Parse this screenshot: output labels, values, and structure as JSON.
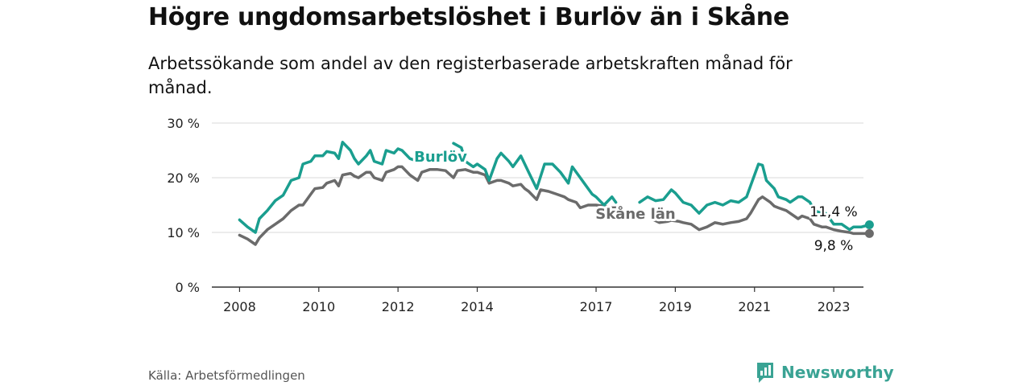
{
  "title": "Högre ungdomsarbetslöshet i Burlöv än i Skåne",
  "subtitle": "Arbetssökande som andel av den registerbaserade arbetskraften månad för månad.",
  "source": "Källa: Arbetsförmedlingen",
  "brand": "Newsworthy",
  "colors": {
    "burlov": "#1a9e8f",
    "skane": "#6b6b6b",
    "grid": "#d9d9d9",
    "axis": "#333333",
    "brand": "#3aa394"
  },
  "chart_data": {
    "type": "line",
    "title": "Högre ungdomsarbetslöshet i Burlöv än i Skåne",
    "xlabel": "",
    "ylabel": "",
    "ylim": [
      0,
      30
    ],
    "y_ticks": [
      0,
      10,
      20,
      30
    ],
    "y_tick_labels": [
      "0 %",
      "10 %",
      "20 %",
      "30 %"
    ],
    "x_range": [
      2007.3,
      2023.75
    ],
    "x_ticks": [
      2008,
      2010,
      2012,
      2014,
      2017,
      2019,
      2021,
      2023
    ],
    "x_tick_labels": [
      "2008",
      "2010",
      "2012",
      "2014",
      "2017",
      "2019",
      "2021",
      "2023"
    ],
    "series": [
      {
        "name": "Burlöv",
        "key": "burlov",
        "label_text": "Burlöv",
        "end_label": "11,4 %",
        "points": [
          [
            2008.0,
            12.3
          ],
          [
            2008.2,
            11.0
          ],
          [
            2008.4,
            10.0
          ],
          [
            2008.5,
            12.5
          ],
          [
            2008.7,
            14.0
          ],
          [
            2008.9,
            15.8
          ],
          [
            2009.1,
            16.8
          ],
          [
            2009.3,
            19.5
          ],
          [
            2009.5,
            20.0
          ],
          [
            2009.6,
            22.5
          ],
          [
            2009.8,
            23.0
          ],
          [
            2009.9,
            24.0
          ],
          [
            2010.1,
            24.0
          ],
          [
            2010.2,
            24.8
          ],
          [
            2010.4,
            24.5
          ],
          [
            2010.5,
            23.5
          ],
          [
            2010.6,
            26.5
          ],
          [
            2010.8,
            25.0
          ],
          [
            2010.9,
            23.5
          ],
          [
            2011.0,
            22.5
          ],
          [
            2011.2,
            24.0
          ],
          [
            2011.3,
            25.0
          ],
          [
            2011.4,
            23.0
          ],
          [
            2011.6,
            22.5
          ],
          [
            2011.7,
            25.0
          ],
          [
            2011.9,
            24.5
          ],
          [
            2012.0,
            25.3
          ],
          [
            2012.1,
            25.0
          ],
          [
            2012.3,
            23.5
          ],
          [
            2012.5,
            23.0
          ]
        ],
        "points_b": [
          [
            2013.4,
            26.3
          ],
          [
            2013.6,
            25.5
          ],
          [
            2013.7,
            23.0
          ],
          [
            2013.9,
            22.0
          ],
          [
            2014.0,
            22.5
          ],
          [
            2014.2,
            21.5
          ],
          [
            2014.3,
            19.5
          ],
          [
            2014.5,
            23.5
          ],
          [
            2014.6,
            24.5
          ],
          [
            2014.8,
            23.0
          ],
          [
            2014.9,
            22.0
          ],
          [
            2015.1,
            24.0
          ],
          [
            2015.2,
            22.5
          ],
          [
            2015.3,
            21.0
          ],
          [
            2015.5,
            18.0
          ],
          [
            2015.7,
            22.5
          ],
          [
            2015.9,
            22.5
          ],
          [
            2016.1,
            21.0
          ],
          [
            2016.3,
            19.0
          ],
          [
            2016.4,
            22.0
          ],
          [
            2016.6,
            20.0
          ],
          [
            2016.7,
            19.0
          ],
          [
            2016.9,
            17.0
          ],
          [
            2017.0,
            16.5
          ],
          [
            2017.2,
            15.0
          ],
          [
            2017.4,
            16.5
          ],
          [
            2017.5,
            15.5
          ]
        ],
        "points_c": [
          [
            2018.1,
            15.5
          ],
          [
            2018.3,
            16.5
          ],
          [
            2018.5,
            15.8
          ],
          [
            2018.7,
            16.0
          ],
          [
            2018.9,
            17.8
          ],
          [
            2019.0,
            17.2
          ],
          [
            2019.2,
            15.5
          ],
          [
            2019.4,
            15.0
          ],
          [
            2019.6,
            13.5
          ],
          [
            2019.8,
            15.0
          ],
          [
            2020.0,
            15.5
          ],
          [
            2020.2,
            15.0
          ],
          [
            2020.4,
            15.8
          ],
          [
            2020.6,
            15.5
          ],
          [
            2020.8,
            16.5
          ],
          [
            2020.9,
            18.5
          ],
          [
            2021.1,
            22.5
          ],
          [
            2021.2,
            22.3
          ],
          [
            2021.3,
            19.5
          ],
          [
            2021.5,
            18.0
          ],
          [
            2021.6,
            16.5
          ],
          [
            2021.8,
            16.0
          ],
          [
            2021.9,
            15.5
          ],
          [
            2022.1,
            16.5
          ],
          [
            2022.2,
            16.5
          ],
          [
            2022.4,
            15.5
          ],
          [
            2022.5,
            14.0
          ],
          [
            2022.7,
            13.5
          ],
          [
            2022.8,
            13.5
          ],
          [
            2023.0,
            11.5
          ],
          [
            2023.2,
            11.5
          ],
          [
            2023.4,
            10.5
          ],
          [
            2023.5,
            11.0
          ],
          [
            2023.7,
            11.0
          ],
          [
            2023.9,
            11.4
          ]
        ]
      },
      {
        "name": "Skåne län",
        "key": "skane",
        "label_text": "Skåne län",
        "end_label": "9,8 %",
        "points": [
          [
            2008.0,
            9.5
          ],
          [
            2008.2,
            8.8
          ],
          [
            2008.4,
            7.8
          ],
          [
            2008.5,
            9.0
          ],
          [
            2008.7,
            10.5
          ],
          [
            2008.9,
            11.5
          ],
          [
            2009.1,
            12.5
          ],
          [
            2009.3,
            14.0
          ],
          [
            2009.5,
            15.0
          ],
          [
            2009.6,
            15.0
          ],
          [
            2009.8,
            17.0
          ],
          [
            2009.9,
            18.0
          ],
          [
            2010.1,
            18.2
          ],
          [
            2010.2,
            19.0
          ],
          [
            2010.4,
            19.5
          ],
          [
            2010.5,
            18.5
          ],
          [
            2010.6,
            20.5
          ],
          [
            2010.8,
            20.8
          ],
          [
            2010.9,
            20.3
          ],
          [
            2011.0,
            20.0
          ],
          [
            2011.2,
            21.0
          ],
          [
            2011.3,
            21.0
          ],
          [
            2011.4,
            20.0
          ],
          [
            2011.6,
            19.5
          ],
          [
            2011.7,
            21.0
          ],
          [
            2011.9,
            21.5
          ],
          [
            2012.0,
            22.0
          ],
          [
            2012.1,
            22.0
          ],
          [
            2012.3,
            20.5
          ],
          [
            2012.5,
            19.5
          ],
          [
            2012.6,
            21.0
          ],
          [
            2012.8,
            21.5
          ],
          [
            2013.0,
            21.5
          ],
          [
            2013.2,
            21.3
          ],
          [
            2013.4,
            20.0
          ],
          [
            2013.5,
            21.3
          ],
          [
            2013.7,
            21.5
          ],
          [
            2013.9,
            21.0
          ],
          [
            2014.0,
            21.0
          ],
          [
            2014.2,
            20.5
          ],
          [
            2014.3,
            19.0
          ],
          [
            2014.5,
            19.5
          ],
          [
            2014.6,
            19.5
          ],
          [
            2014.8,
            19.0
          ],
          [
            2014.9,
            18.5
          ],
          [
            2015.1,
            18.8
          ],
          [
            2015.2,
            18.0
          ],
          [
            2015.3,
            17.5
          ],
          [
            2015.5,
            16.0
          ],
          [
            2015.6,
            17.8
          ],
          [
            2015.8,
            17.5
          ],
          [
            2016.0,
            17.0
          ],
          [
            2016.2,
            16.5
          ],
          [
            2016.3,
            16.0
          ],
          [
            2016.5,
            15.5
          ],
          [
            2016.6,
            14.5
          ],
          [
            2016.8,
            15.0
          ],
          [
            2017.0,
            15.0
          ],
          [
            2017.2,
            14.8
          ],
          [
            2017.4,
            14.5
          ],
          [
            2017.5,
            14.5
          ]
        ],
        "points_b": [
          [
            2018.4,
            12.5
          ],
          [
            2018.6,
            11.8
          ],
          [
            2018.8,
            12.0
          ],
          [
            2018.9,
            12.2
          ],
          [
            2019.1,
            12.0
          ],
          [
            2019.2,
            11.8
          ],
          [
            2019.4,
            11.5
          ],
          [
            2019.5,
            11.0
          ],
          [
            2019.6,
            10.5
          ],
          [
            2019.8,
            11.0
          ],
          [
            2020.0,
            11.8
          ],
          [
            2020.2,
            11.5
          ],
          [
            2020.4,
            11.8
          ],
          [
            2020.6,
            12.0
          ],
          [
            2020.8,
            12.5
          ],
          [
            2020.9,
            13.5
          ],
          [
            2021.1,
            16.0
          ],
          [
            2021.2,
            16.5
          ],
          [
            2021.4,
            15.5
          ],
          [
            2021.5,
            14.8
          ],
          [
            2021.6,
            14.5
          ],
          [
            2021.8,
            14.0
          ],
          [
            2021.9,
            13.5
          ],
          [
            2022.1,
            12.5
          ],
          [
            2022.2,
            13.0
          ],
          [
            2022.4,
            12.5
          ],
          [
            2022.5,
            11.5
          ],
          [
            2022.7,
            11.0
          ],
          [
            2022.8,
            11.0
          ],
          [
            2023.0,
            10.5
          ],
          [
            2023.2,
            10.2
          ],
          [
            2023.4,
            10.0
          ],
          [
            2023.5,
            9.8
          ],
          [
            2023.7,
            9.8
          ],
          [
            2023.9,
            9.8
          ]
        ]
      }
    ]
  }
}
